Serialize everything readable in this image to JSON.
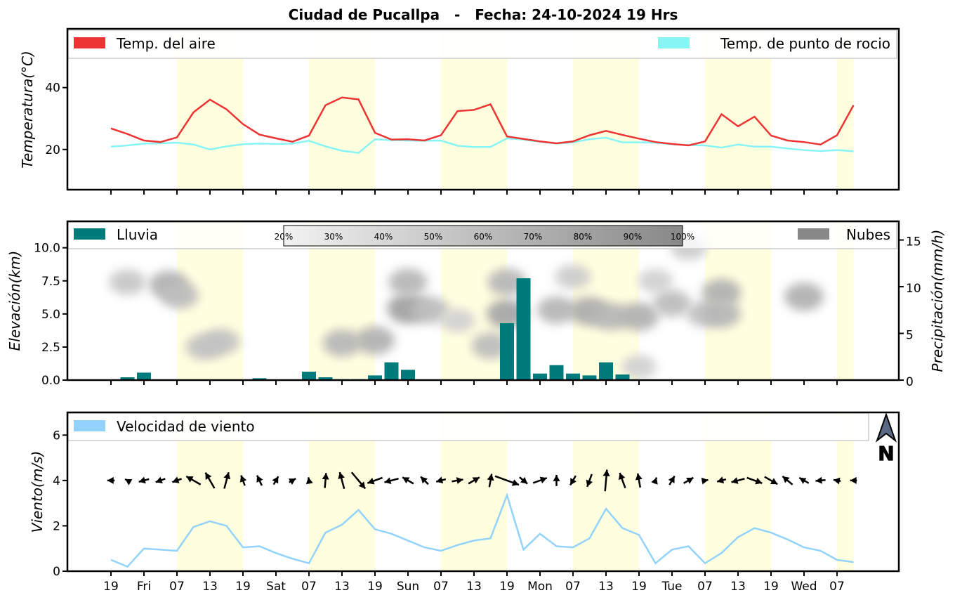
{
  "title": "Ciudad de Pucallpa   -   Fecha: 24-10-2024 19 Hrs",
  "x_tick_labels": [
    "19",
    "Fri",
    "07",
    "13",
    "19",
    "Sat",
    "07",
    "13",
    "19",
    "Sun",
    "07",
    "13",
    "19",
    "Mon",
    "07",
    "13",
    "19",
    "Tue",
    "07",
    "13",
    "19",
    "Wed",
    "07"
  ],
  "colors": {
    "air_temp": "#ee3333",
    "dew_point": "#88f5f5",
    "rain": "#007b7b",
    "clouds": "#888888",
    "wind": "#93d3fb",
    "daytime_band": "#ffffe0"
  },
  "chart_data": [
    {
      "type": "line",
      "x_unit": "hours since first tick (3h steps)",
      "x": [
        0,
        3,
        6,
        9,
        12,
        15,
        18,
        21,
        24,
        27,
        30,
        33,
        36,
        39,
        42,
        45,
        48,
        51,
        54,
        57,
        60,
        63,
        66,
        69,
        72,
        75,
        78,
        81,
        84,
        87,
        90,
        93,
        96,
        99,
        102,
        105,
        108,
        111,
        114,
        117,
        120,
        123,
        126,
        129,
        132,
        135
      ],
      "series": [
        {
          "name": "Temp. del aire",
          "values": [
            26.8,
            25.0,
            22.9,
            22.4,
            23.9,
            32.0,
            36.1,
            33.0,
            28.2,
            24.8,
            23.6,
            22.5,
            24.5,
            34.3,
            36.8,
            36.2,
            25.4,
            23.2,
            23.3,
            22.9,
            24.6,
            32.4,
            32.8,
            34.6,
            24.2,
            23.4,
            22.6,
            22.0,
            22.6,
            24.6,
            26.0,
            24.7,
            23.5,
            22.4,
            21.8,
            21.3,
            22.6,
            31.4,
            27.5,
            30.6,
            24.5,
            22.9,
            22.4,
            21.6,
            24.6,
            34.3
          ]
        },
        {
          "name": "Temp. de punto de rocio",
          "values": [
            20.9,
            21.3,
            21.9,
            22.0,
            22.2,
            21.6,
            20.0,
            21.0,
            21.7,
            21.9,
            21.8,
            21.9,
            22.8,
            21.0,
            19.6,
            18.9,
            23.3,
            23.0,
            22.9,
            22.8,
            22.9,
            21.2,
            20.8,
            20.8,
            23.6,
            23.2,
            22.5,
            21.9,
            22.3,
            23.3,
            23.8,
            22.3,
            22.3,
            22.2,
            21.7,
            21.4,
            21.3,
            20.6,
            21.6,
            20.9,
            20.9,
            20.3,
            19.8,
            19.5,
            19.8,
            19.4
          ]
        }
      ],
      "ylabel": "Temperatura(°C)",
      "ylim": [
        7,
        59
      ],
      "yticks": [
        20,
        40
      ],
      "legend": "top"
    },
    {
      "type": "bar",
      "series_name": "Lluvia",
      "x": [
        3,
        6,
        12,
        18,
        27,
        33,
        36,
        39,
        42,
        45,
        48,
        51,
        54,
        57,
        60,
        63,
        66,
        69,
        72,
        75,
        78,
        81,
        84,
        87,
        90,
        93,
        96
      ],
      "precip_values": [
        0.3,
        0.8,
        0,
        0,
        0.2,
        0,
        0.9,
        0.3,
        0.1,
        0.1,
        0.5,
        1.9,
        1.1,
        0,
        0,
        0,
        0,
        0,
        6.1,
        10.9,
        0.7,
        1.6,
        0.7,
        0.5,
        1.9,
        0.6,
        0
      ],
      "ylabel_left": "Elevación(km)",
      "ylabel_right": "Precipitación(mm/h)",
      "ylim_left": [
        0,
        12
      ],
      "yticks_left": [
        "0.0",
        "2.5",
        "5.0",
        "7.5",
        "10.0"
      ],
      "ylim_right": [
        0,
        17
      ],
      "yticks_right": [
        0,
        5,
        10,
        15
      ],
      "clouds_legend": "Nubes",
      "colorbar_labels": [
        "20%",
        "30%",
        "40%",
        "50%",
        "60%",
        "70%",
        "80%",
        "90%",
        "100%"
      ],
      "cloud_blobs": [
        {
          "x": 3,
          "elev": 7.4,
          "cover": 0.4
        },
        {
          "x": 10.5,
          "elev": 7.2,
          "cover": 0.6
        },
        {
          "x": 12.5,
          "elev": 6.4,
          "cover": 0.5
        },
        {
          "x": 17,
          "elev": 2.5,
          "cover": 0.45
        },
        {
          "x": 20,
          "elev": 2.9,
          "cover": 0.45
        },
        {
          "x": 42,
          "elev": 2.8,
          "cover": 0.55
        },
        {
          "x": 48,
          "elev": 3.0,
          "cover": 0.6
        },
        {
          "x": 54,
          "elev": 5.4,
          "cover": 0.75
        },
        {
          "x": 54,
          "elev": 7.4,
          "cover": 0.55
        },
        {
          "x": 58,
          "elev": 5.3,
          "cover": 0.5
        },
        {
          "x": 63,
          "elev": 4.5,
          "cover": 0.3
        },
        {
          "x": 69,
          "elev": 2.6,
          "cover": 0.5
        },
        {
          "x": 72,
          "elev": 5.0,
          "cover": 0.7
        },
        {
          "x": 72,
          "elev": 7.4,
          "cover": 0.55
        },
        {
          "x": 81,
          "elev": 5.3,
          "cover": 0.55
        },
        {
          "x": 84,
          "elev": 7.8,
          "cover": 0.35
        },
        {
          "x": 87,
          "elev": 5.2,
          "cover": 0.65
        },
        {
          "x": 91,
          "elev": 4.8,
          "cover": 0.55
        },
        {
          "x": 96,
          "elev": 4.8,
          "cover": 0.6
        },
        {
          "x": 99,
          "elev": 7.5,
          "cover": 0.3
        },
        {
          "x": 102,
          "elev": 5.8,
          "cover": 0.5
        },
        {
          "x": 105,
          "elev": 10.0,
          "cover": 0.35
        },
        {
          "x": 108,
          "elev": 5.0,
          "cover": 0.45
        },
        {
          "x": 111,
          "elev": 6.6,
          "cover": 0.6
        },
        {
          "x": 111,
          "elev": 5.0,
          "cover": 0.55
        },
        {
          "x": 126,
          "elev": 6.3,
          "cover": 0.6
        },
        {
          "x": 96,
          "elev": 1.0,
          "cover": 0.3
        }
      ],
      "legend": "top"
    },
    {
      "type": "line",
      "series": [
        {
          "name": "Velocidad de viento",
          "values": [
            0.5,
            0.2,
            1.0,
            0.95,
            0.9,
            1.95,
            2.2,
            2.0,
            1.05,
            1.1,
            0.8,
            0.55,
            0.35,
            1.7,
            2.05,
            2.7,
            1.85,
            1.65,
            1.35,
            1.05,
            0.9,
            1.15,
            1.35,
            1.45,
            3.35,
            0.95,
            1.65,
            1.1,
            1.05,
            1.45,
            2.75,
            1.9,
            1.6,
            0.35,
            0.95,
            1.1,
            0.35,
            0.8,
            1.5,
            1.9,
            1.7,
            1.4,
            1.05,
            0.9,
            0.5,
            0.4
          ]
        }
      ],
      "wind_direction_deg": [
        270,
        300,
        255,
        250,
        250,
        300,
        330,
        15,
        340,
        335,
        30,
        60,
        350,
        5,
        345,
        140,
        250,
        255,
        300,
        315,
        255,
        80,
        60,
        10,
        110,
        130,
        70,
        0,
        210,
        200,
        5,
        340,
        350,
        20,
        30,
        60,
        80,
        255,
        255,
        110,
        120,
        310,
        300,
        265,
        280,
        270
      ],
      "ylabel": "Viento(m/s)",
      "ylim": [
        0,
        7
      ],
      "yticks": [
        0,
        2,
        4,
        6
      ],
      "arrow_row_level": 4.0,
      "north_label": "N",
      "legend": "top-left"
    }
  ]
}
